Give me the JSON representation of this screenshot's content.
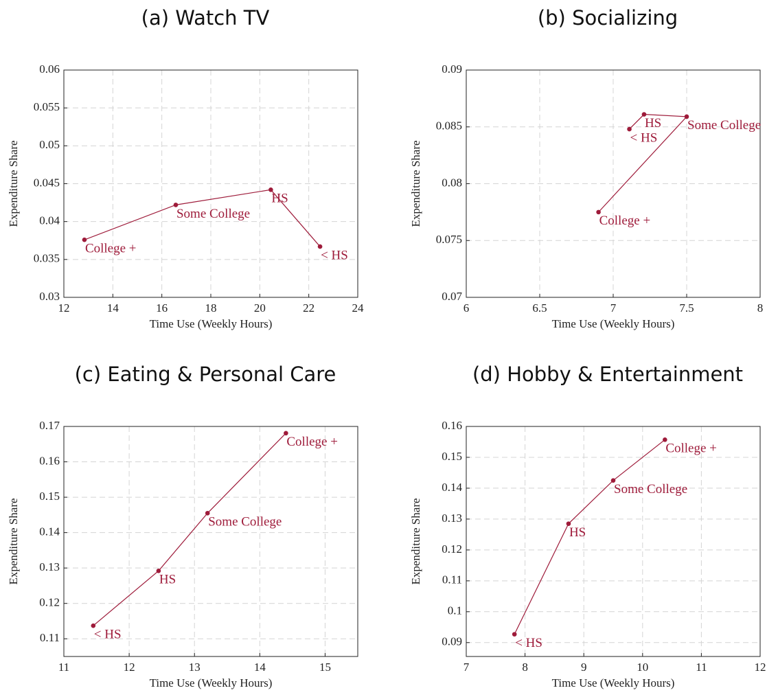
{
  "chart_data": [
    {
      "type": "line",
      "title": "(a) Watch TV",
      "xlabel": "Time Use (Weekly Hours)",
      "ylabel": "Expenditure Share",
      "color": "#9e1b3a",
      "grid": true,
      "x": [
        12.84,
        16.57,
        20.45,
        22.46
      ],
      "values": [
        0.0376,
        0.0422,
        0.0442,
        0.0367
      ],
      "point_labels": [
        "College +",
        "Some College",
        "HS",
        "< HS"
      ],
      "xlim": [
        12,
        24
      ],
      "xticks": [
        12,
        14,
        16,
        18,
        20,
        22,
        24
      ],
      "ylim": [
        0.03,
        0.06
      ],
      "yticks": [
        0.03,
        0.035,
        0.04,
        0.045,
        0.05,
        0.055,
        0.06
      ]
    },
    {
      "type": "line",
      "title": "(b) Socializing",
      "xlabel": "Time Use (Weekly Hours)",
      "ylabel": "Expenditure Share",
      "color": "#9e1b3a",
      "grid": true,
      "x": [
        7.11,
        7.21,
        7.5,
        6.9
      ],
      "values": [
        0.0848,
        0.0861,
        0.0859,
        0.0775
      ],
      "point_labels": [
        "< HS",
        "HS",
        "Some College",
        "College +"
      ],
      "xlim": [
        6,
        8
      ],
      "xticks": [
        6,
        6.5,
        7,
        7.5,
        8
      ],
      "ylim": [
        0.07,
        0.09
      ],
      "yticks": [
        0.07,
        0.075,
        0.08,
        0.085,
        0.09
      ]
    },
    {
      "type": "line",
      "title": "(c) Eating & Personal Care",
      "xlabel": "Time Use (Weekly Hours)",
      "ylabel": "Expenditure Share",
      "color": "#9e1b3a",
      "grid": true,
      "x": [
        11.45,
        12.45,
        13.2,
        14.4
      ],
      "values": [
        0.1137,
        0.1292,
        0.1455,
        0.1681
      ],
      "point_labels": [
        "< HS",
        "HS",
        "Some College",
        "College +"
      ],
      "xlim": [
        11,
        15.5
      ],
      "xticks": [
        11,
        12,
        13,
        14,
        15
      ],
      "ylim": [
        0.105,
        0.17
      ],
      "yticks": [
        0.11,
        0.12,
        0.13,
        0.14,
        0.15,
        0.16,
        0.17
      ]
    },
    {
      "type": "line",
      "title": "(d) Hobby & Entertainment",
      "xlabel": "Time Use (Weekly Hours)",
      "ylabel": "Expenditure Share",
      "color": "#9e1b3a",
      "grid": true,
      "x": [
        7.82,
        8.74,
        9.5,
        10.38
      ],
      "values": [
        0.0927,
        0.1285,
        0.1425,
        0.1557
      ],
      "point_labels": [
        "< HS",
        "HS",
        "Some College",
        "College +"
      ],
      "xlim": [
        7,
        12
      ],
      "xticks": [
        7,
        8,
        9,
        10,
        11,
        12
      ],
      "ylim": [
        0.0855,
        0.16
      ],
      "yticks": [
        0.09,
        0.1,
        0.11,
        0.12,
        0.13,
        0.14,
        0.15,
        0.16
      ]
    }
  ]
}
